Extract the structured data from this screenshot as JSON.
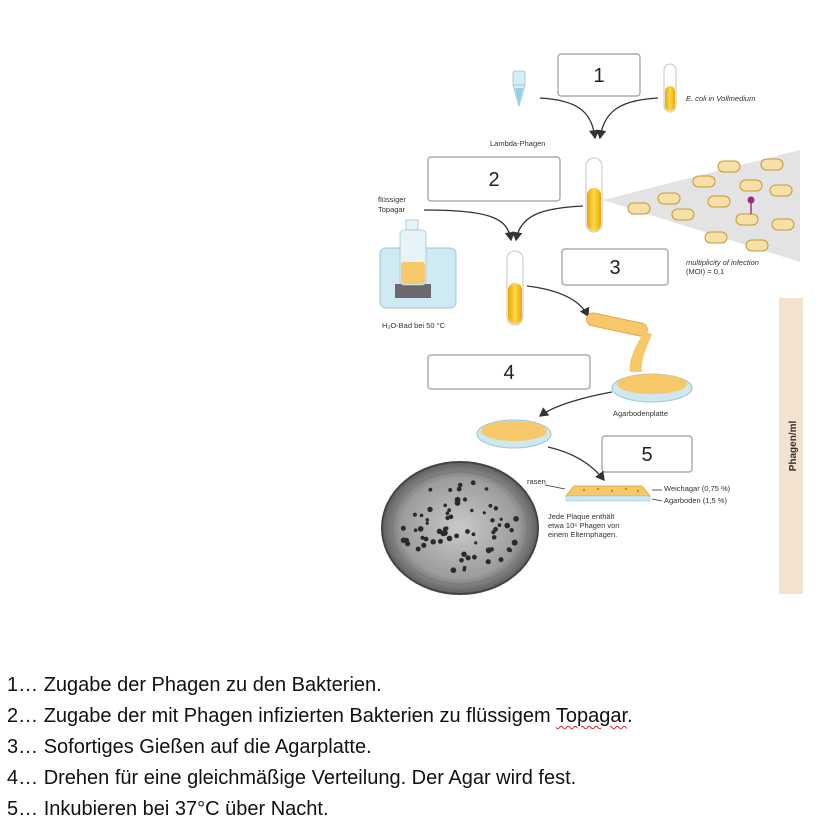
{
  "diagram": {
    "step_numbers": [
      "1",
      "2",
      "3",
      "4",
      "5"
    ],
    "labels": {
      "lambda_phage": "Lambda-Phagen",
      "ecoli": "E. coli in Vollmedium",
      "topagar_line1": "flüssiger",
      "topagar_line2": "Topagar",
      "water_bath": "H₂O-Bad bei 50 °C",
      "moi_line1": "multiplicity of infection",
      "moi_line2": "(MOI) = 0,1",
      "agar_plate": "Agarbodenplatte",
      "lawn": "rasen",
      "soft_agar": "Weichagar (0,75 %)",
      "agar_base": "Agarboden (1,5 %)",
      "plaque_line1": "Jede Plaque enthält",
      "plaque_line2": "etwa 10⁶ Phagen von",
      "plaque_line3": "einem Elternphagen.",
      "side_bar": "Phagen/ml"
    },
    "colors": {
      "medium_yellow": "#f2c11a",
      "agar_orange": "#f7c869",
      "side_bar": "#f3e2d0",
      "water_blue": "#cfeaf3"
    }
  },
  "steps": [
    {
      "prefix": "1… ",
      "text": "Zugabe der Phagen zu den Bakterien.",
      "flag": "",
      "suffix": ""
    },
    {
      "prefix": "2… ",
      "text": "Zugabe der mit Phagen infizierten Bakterien zu flüssigem ",
      "flag": "Topagar",
      "suffix": "."
    },
    {
      "prefix": "3… ",
      "text": "Sofortiges Gießen auf die Agarplatte.",
      "flag": "",
      "suffix": ""
    },
    {
      "prefix": "4… ",
      "text": "Drehen für eine gleichmäßige Verteilung. Der Agar wird fest.",
      "flag": "",
      "suffix": ""
    },
    {
      "prefix": "5… ",
      "text": "Inkubieren bei 37°C über Nacht.",
      "flag": "",
      "suffix": ""
    }
  ]
}
